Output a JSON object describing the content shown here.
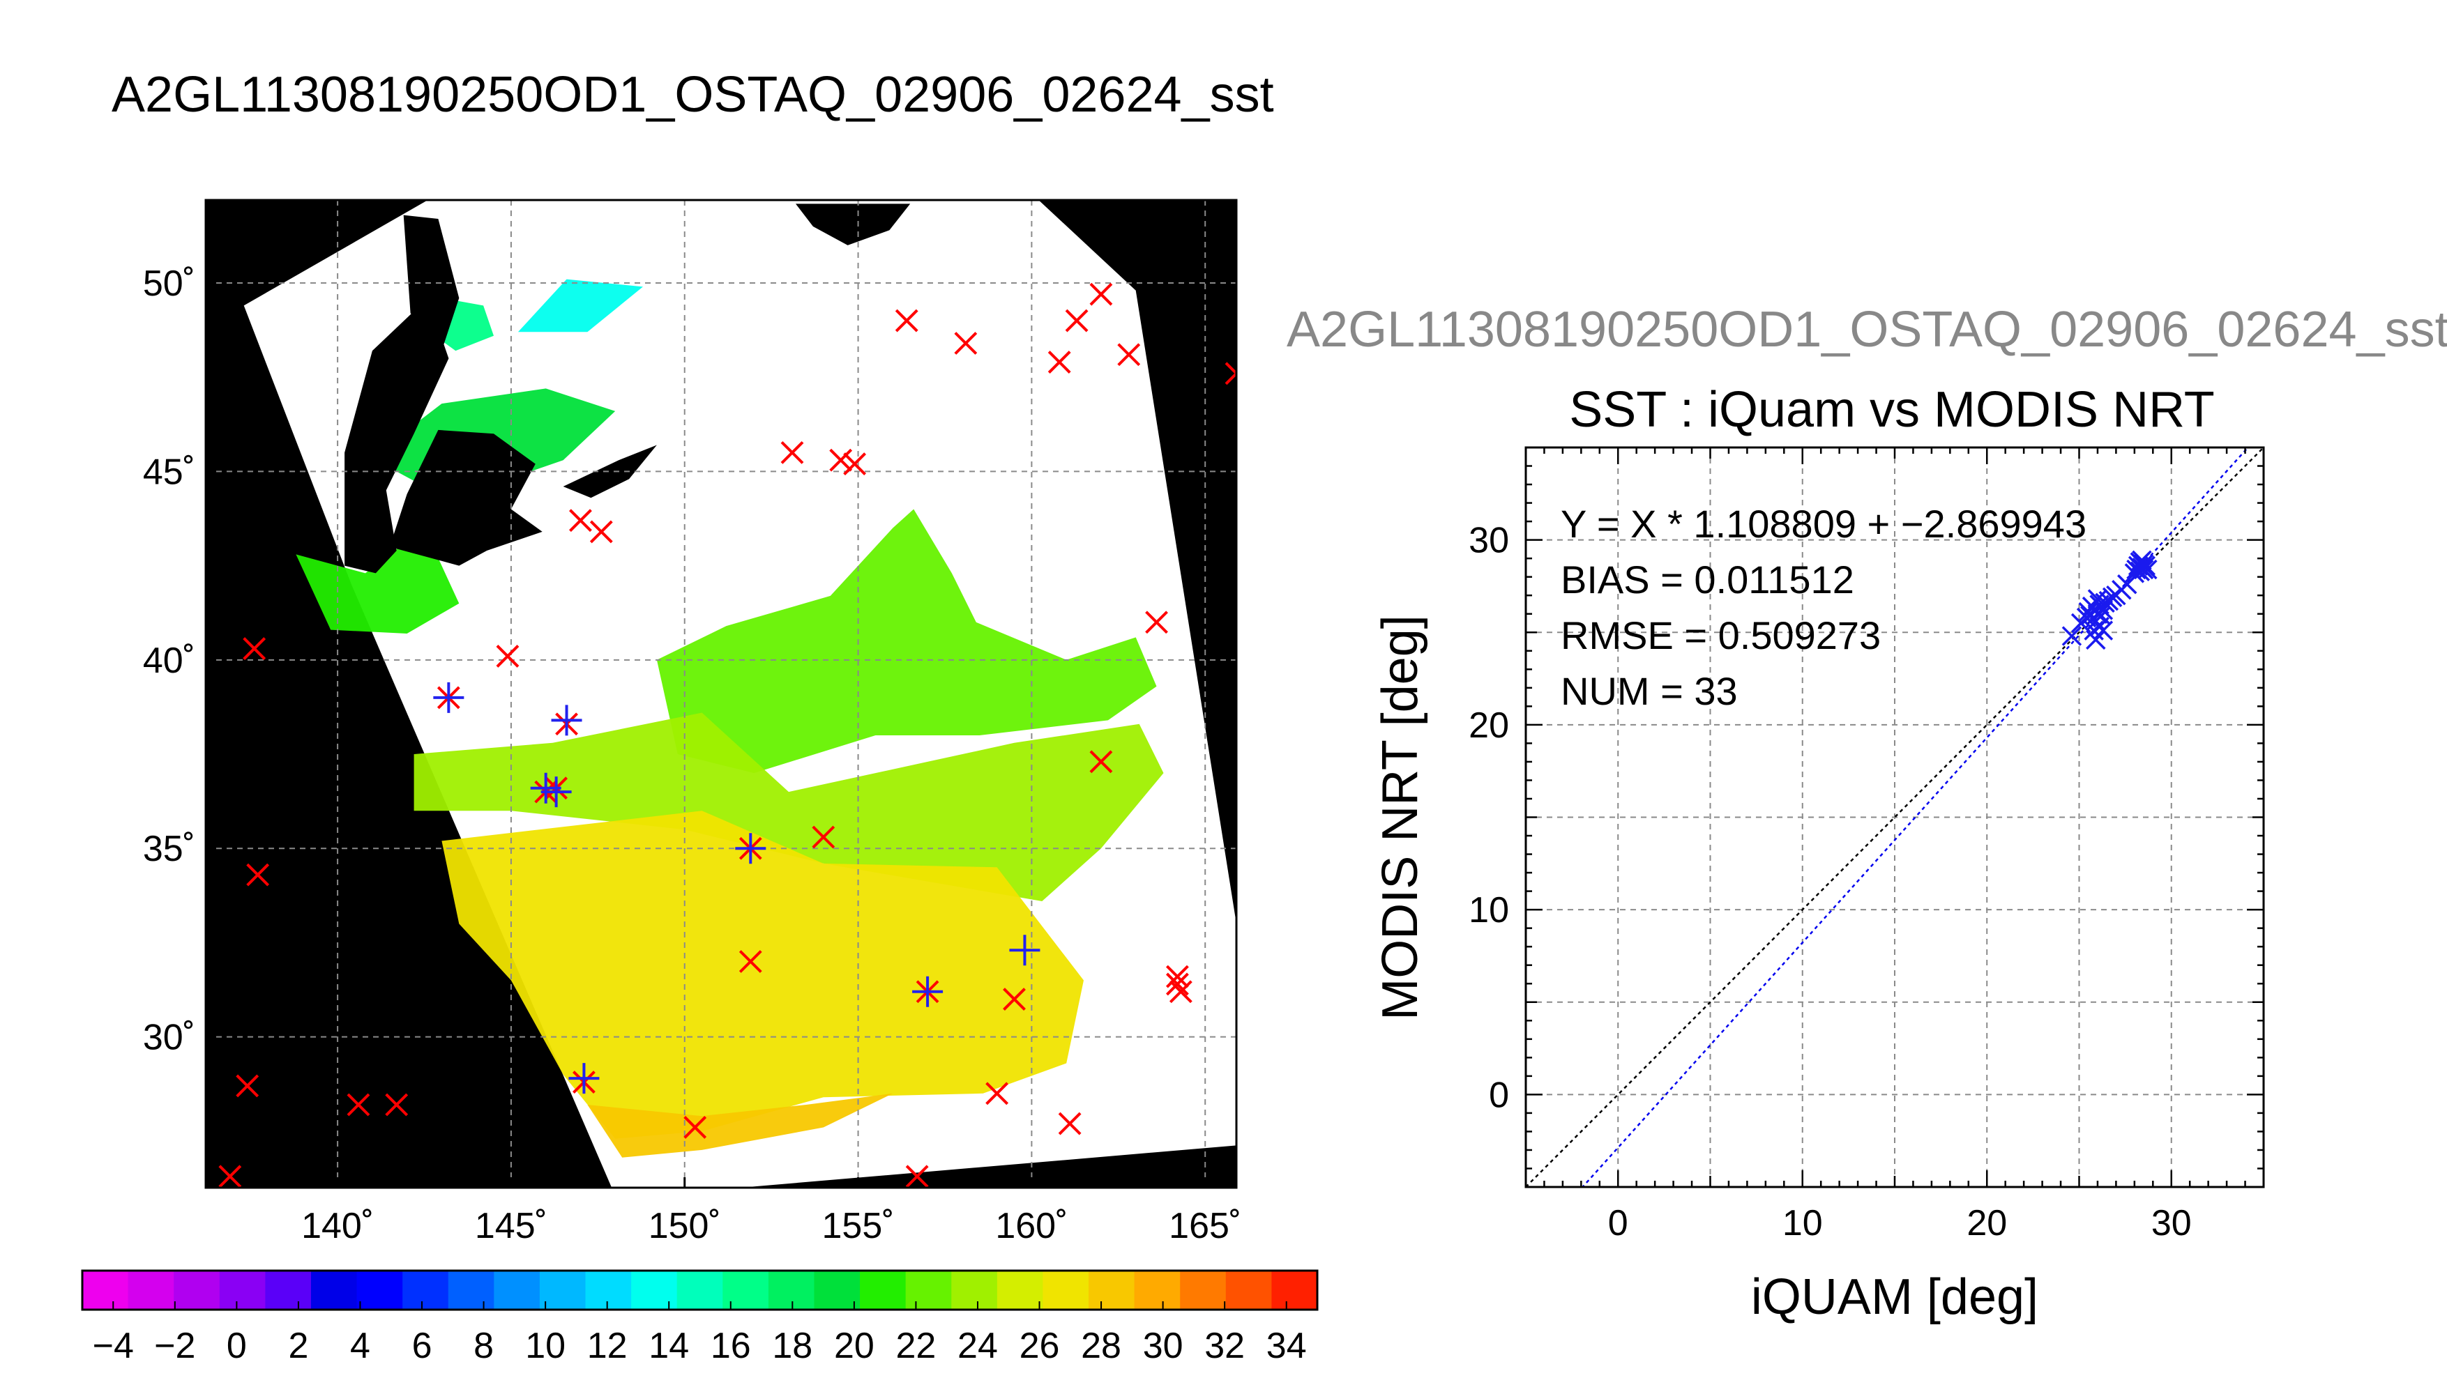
{
  "figure": {
    "main_title": "A2GL11308190250OD1_OSTAQ_02906_02624_sst",
    "side_title": "A2GL11308190250OD1_OSTAQ_02906_02624_sst"
  },
  "chart_data": [
    {
      "type": "heatmap",
      "title": "A2GL11308190250OD1_OSTAQ_02906_02624_sst",
      "xlabel": "",
      "ylabel": "",
      "xlim": [
        136.2,
        165.9
      ],
      "ylim": [
        26.0,
        52.2
      ],
      "x_ticks": [
        140,
        145,
        150,
        155,
        160,
        165
      ],
      "x_tick_labels": [
        "140˚",
        "145˚",
        "150˚",
        "155˚",
        "160˚",
        "165˚"
      ],
      "y_ticks": [
        30,
        35,
        40,
        45,
        50
      ],
      "y_tick_labels": [
        "30˚",
        "35˚",
        "40˚",
        "45˚",
        "50˚"
      ],
      "grid": true,
      "swath_corners": [
        [
          137.3,
          49.4
        ],
        [
          142.6,
          52.2
        ],
        [
          160.2,
          52.2
        ],
        [
          163.0,
          49.8
        ],
        [
          166.9,
          27.2
        ],
        [
          151.6,
          26.0
        ],
        [
          147.9,
          26.0
        ],
        [
          140.4,
          42.0
        ]
      ],
      "land_mask": [
        [
          [
            140.2,
            45.5
          ],
          [
            141.0,
            48.2
          ],
          [
            142.6,
            49.6
          ],
          [
            143.2,
            48.0
          ],
          [
            142.2,
            46.0
          ],
          [
            141.4,
            44.5
          ],
          [
            141.7,
            42.9
          ],
          [
            141.1,
            42.3
          ],
          [
            140.2,
            42.5
          ]
        ],
        [
          [
            141.9,
            51.8
          ],
          [
            142.9,
            51.7
          ],
          [
            143.5,
            49.6
          ],
          [
            143.0,
            48.2
          ],
          [
            142.1,
            49.2
          ]
        ],
        [
          [
            142.9,
            46.1
          ],
          [
            144.5,
            46.0
          ],
          [
            145.7,
            45.2
          ],
          [
            145.0,
            44.0
          ],
          [
            145.9,
            43.4
          ],
          [
            144.3,
            42.9
          ],
          [
            143.5,
            42.5
          ],
          [
            141.5,
            43.0
          ],
          [
            142.0,
            44.4
          ]
        ],
        [
          [
            146.5,
            44.6
          ],
          [
            148.1,
            45.3
          ],
          [
            149.2,
            45.7
          ],
          [
            148.4,
            44.8
          ],
          [
            147.3,
            44.3
          ]
        ],
        [
          [
            153.2,
            52.1
          ],
          [
            156.5,
            52.1
          ],
          [
            155.9,
            51.4
          ],
          [
            154.7,
            51.0
          ],
          [
            153.7,
            51.5
          ]
        ]
      ],
      "colorbar": {
        "min": -5,
        "max": 35,
        "step": 2,
        "tick_labels": [
          "−4",
          "−2",
          "0",
          "2",
          "4",
          "6",
          "8",
          "10",
          "12",
          "14",
          "16",
          "18",
          "20",
          "22",
          "24",
          "26",
          "28",
          "30",
          "32",
          "34"
        ],
        "colors": [
          "#ee00ee",
          "#d400ee",
          "#b000f0",
          "#8a00f4",
          "#5a00f8",
          "#0000e8",
          "#0000ff",
          "#0030ff",
          "#0060ff",
          "#0090ff",
          "#00b8ff",
          "#00dcff",
          "#00ffee",
          "#00ffbb",
          "#00ff88",
          "#00f060",
          "#00e03a",
          "#22ee00",
          "#66f200",
          "#a0f000",
          "#d4ee00",
          "#f0e400",
          "#f8c800",
          "#ffaa00",
          "#ff7a00",
          "#ff5200",
          "#ff2000"
        ]
      },
      "sst_regions": [
        {
          "value": 20,
          "polygon": [
            [
              141.3,
              45.6
            ],
            [
              143.0,
              46.8
            ],
            [
              146.0,
              47.2
            ],
            [
              148.0,
              46.6
            ],
            [
              146.5,
              45.3
            ],
            [
              144.0,
              44.5
            ],
            [
              142.3,
              44.7
            ],
            [
              141.3,
              45.2
            ]
          ]
        },
        {
          "value": 16,
          "polygon": [
            [
              142.2,
              49.0
            ],
            [
              143.4,
              48.2
            ],
            [
              144.5,
              48.6
            ],
            [
              144.2,
              49.4
            ],
            [
              143.0,
              49.6
            ]
          ]
        },
        {
          "value": 13,
          "polygon": [
            [
              145.2,
              48.7
            ],
            [
              147.2,
              48.7
            ],
            [
              148.8,
              49.9
            ],
            [
              146.6,
              50.1
            ]
          ]
        },
        {
          "value": 21,
          "polygon": [
            [
              138.8,
              42.8
            ],
            [
              140.8,
              42.3
            ],
            [
              142.5,
              43.5
            ],
            [
              143.5,
              41.5
            ],
            [
              142.0,
              40.7
            ],
            [
              139.8,
              40.8
            ]
          ]
        },
        {
          "value": 22,
          "polygon": [
            [
              149.2,
              40.0
            ],
            [
              151.2,
              40.9
            ],
            [
              154.2,
              41.7
            ],
            [
              156.0,
              43.5
            ],
            [
              156.6,
              44.0
            ],
            [
              157.7,
              42.3
            ],
            [
              158.4,
              41.0
            ],
            [
              161.0,
              40.0
            ],
            [
              163.0,
              40.6
            ],
            [
              163.6,
              39.3
            ],
            [
              162.2,
              38.4
            ],
            [
              158.5,
              38.0
            ],
            [
              155.5,
              38.0
            ],
            [
              152.0,
              37.0
            ],
            [
              149.8,
              37.5
            ]
          ]
        },
        {
          "value": 24,
          "polygon": [
            [
              142.2,
              37.5
            ],
            [
              146.2,
              37.8
            ],
            [
              150.5,
              38.6
            ],
            [
              153.0,
              36.5
            ],
            [
              157.0,
              37.3
            ],
            [
              159.5,
              37.8
            ],
            [
              163.1,
              38.3
            ],
            [
              163.8,
              37.0
            ],
            [
              162.0,
              35.0
            ],
            [
              160.3,
              33.6
            ],
            [
              154.0,
              34.6
            ],
            [
              150.0,
              35.5
            ],
            [
              145.0,
              36.0
            ],
            [
              142.2,
              36.0
            ]
          ]
        },
        {
          "value": 27.5,
          "polygon": [
            [
              143.0,
              35.2
            ],
            [
              150.5,
              36.0
            ],
            [
              154.0,
              34.6
            ],
            [
              159.0,
              34.5
            ],
            [
              161.5,
              31.5
            ],
            [
              161.0,
              29.3
            ],
            [
              158.6,
              28.5
            ],
            [
              154.0,
              28.4
            ],
            [
              150.5,
              27.5
            ],
            [
              148.0,
              27.3
            ],
            [
              146.5,
              29.0
            ],
            [
              145.0,
              31.5
            ],
            [
              143.5,
              33.0
            ]
          ]
        },
        {
          "value": 29,
          "polygon": [
            [
              147.2,
              28.2
            ],
            [
              150.5,
              27.9
            ],
            [
              153.5,
              28.2
            ],
            [
              156.0,
              28.5
            ],
            [
              154.0,
              27.6
            ],
            [
              150.5,
              27.0
            ],
            [
              148.2,
              26.8
            ]
          ]
        }
      ],
      "matchups_red": [
        [
          136.9,
          26.3
        ],
        [
          137.4,
          28.7
        ],
        [
          137.6,
          40.3
        ],
        [
          137.7,
          34.3
        ],
        [
          140.6,
          28.2
        ],
        [
          141.7,
          28.2
        ],
        [
          143.2,
          39.0
        ],
        [
          144.9,
          40.1
        ],
        [
          146.0,
          36.5
        ],
        [
          146.3,
          36.6
        ],
        [
          146.6,
          38.3
        ],
        [
          147.0,
          43.7
        ],
        [
          147.1,
          28.8
        ],
        [
          147.6,
          43.4
        ],
        [
          150.3,
          27.6
        ],
        [
          151.9,
          35.0
        ],
        [
          151.9,
          32.0
        ],
        [
          153.1,
          45.5
        ],
        [
          154.0,
          35.3
        ],
        [
          154.5,
          45.3
        ],
        [
          154.9,
          45.2
        ],
        [
          156.4,
          49.0
        ],
        [
          156.7,
          26.3
        ],
        [
          157.0,
          31.2
        ],
        [
          158.1,
          48.4
        ],
        [
          159.0,
          28.5
        ],
        [
          159.5,
          31.0
        ],
        [
          160.8,
          47.9
        ],
        [
          161.1,
          27.7
        ],
        [
          161.3,
          49.0
        ],
        [
          162.0,
          49.7
        ],
        [
          162.0,
          37.3
        ],
        [
          162.8,
          48.1
        ],
        [
          163.6,
          41.0
        ],
        [
          164.2,
          31.6
        ],
        [
          164.2,
          31.4
        ],
        [
          164.3,
          31.2
        ],
        [
          165.9,
          47.6
        ]
      ],
      "matchups_blue": [
        [
          143.2,
          39.0
        ],
        [
          146.0,
          36.6
        ],
        [
          146.3,
          36.5
        ],
        [
          146.6,
          38.4
        ],
        [
          147.1,
          28.9
        ],
        [
          151.9,
          35.0
        ],
        [
          157.0,
          31.2
        ],
        [
          159.8,
          32.3
        ]
      ]
    },
    {
      "type": "scatter",
      "title": "SST : iQuam vs MODIS NRT",
      "xlabel": "iQUAM [deg]",
      "ylabel": "MODIS NRT [deg]",
      "xlim": [
        -5,
        35
      ],
      "ylim": [
        -5,
        35
      ],
      "x_ticks": [
        0,
        10,
        20,
        30
      ],
      "y_ticks": [
        0,
        10,
        20,
        30
      ],
      "grid": true,
      "annotations": [
        "Y = X * 1.108809 + −2.869943",
        "BIAS = 0.011512",
        "RMSE = 0.509273",
        "NUM = 33"
      ],
      "fit": {
        "slope": 1.108809,
        "intercept": -2.869943
      },
      "x": [
        24.6,
        25.1,
        25.4,
        25.5,
        25.6,
        25.7,
        25.8,
        25.9,
        25.9,
        26.0,
        26.0,
        26.1,
        26.1,
        26.2,
        26.3,
        26.3,
        26.4,
        26.6,
        26.8,
        27.0,
        27.3,
        27.6,
        28.0,
        28.1,
        28.2,
        28.3,
        28.3,
        28.4,
        28.4,
        28.5,
        28.5,
        28.6,
        28.7
      ],
      "y": [
        24.8,
        25.5,
        25.8,
        26.1,
        25.9,
        26.4,
        25.1,
        24.6,
        25.6,
        26.0,
        26.8,
        25.3,
        26.5,
        25.9,
        25.1,
        26.2,
        26.6,
        26.7,
        26.9,
        27.0,
        27.3,
        27.6,
        28.2,
        28.4,
        28.6,
        28.3,
        28.8,
        28.5,
        28.9,
        28.4,
        28.7,
        28.6,
        28.4
      ]
    }
  ]
}
